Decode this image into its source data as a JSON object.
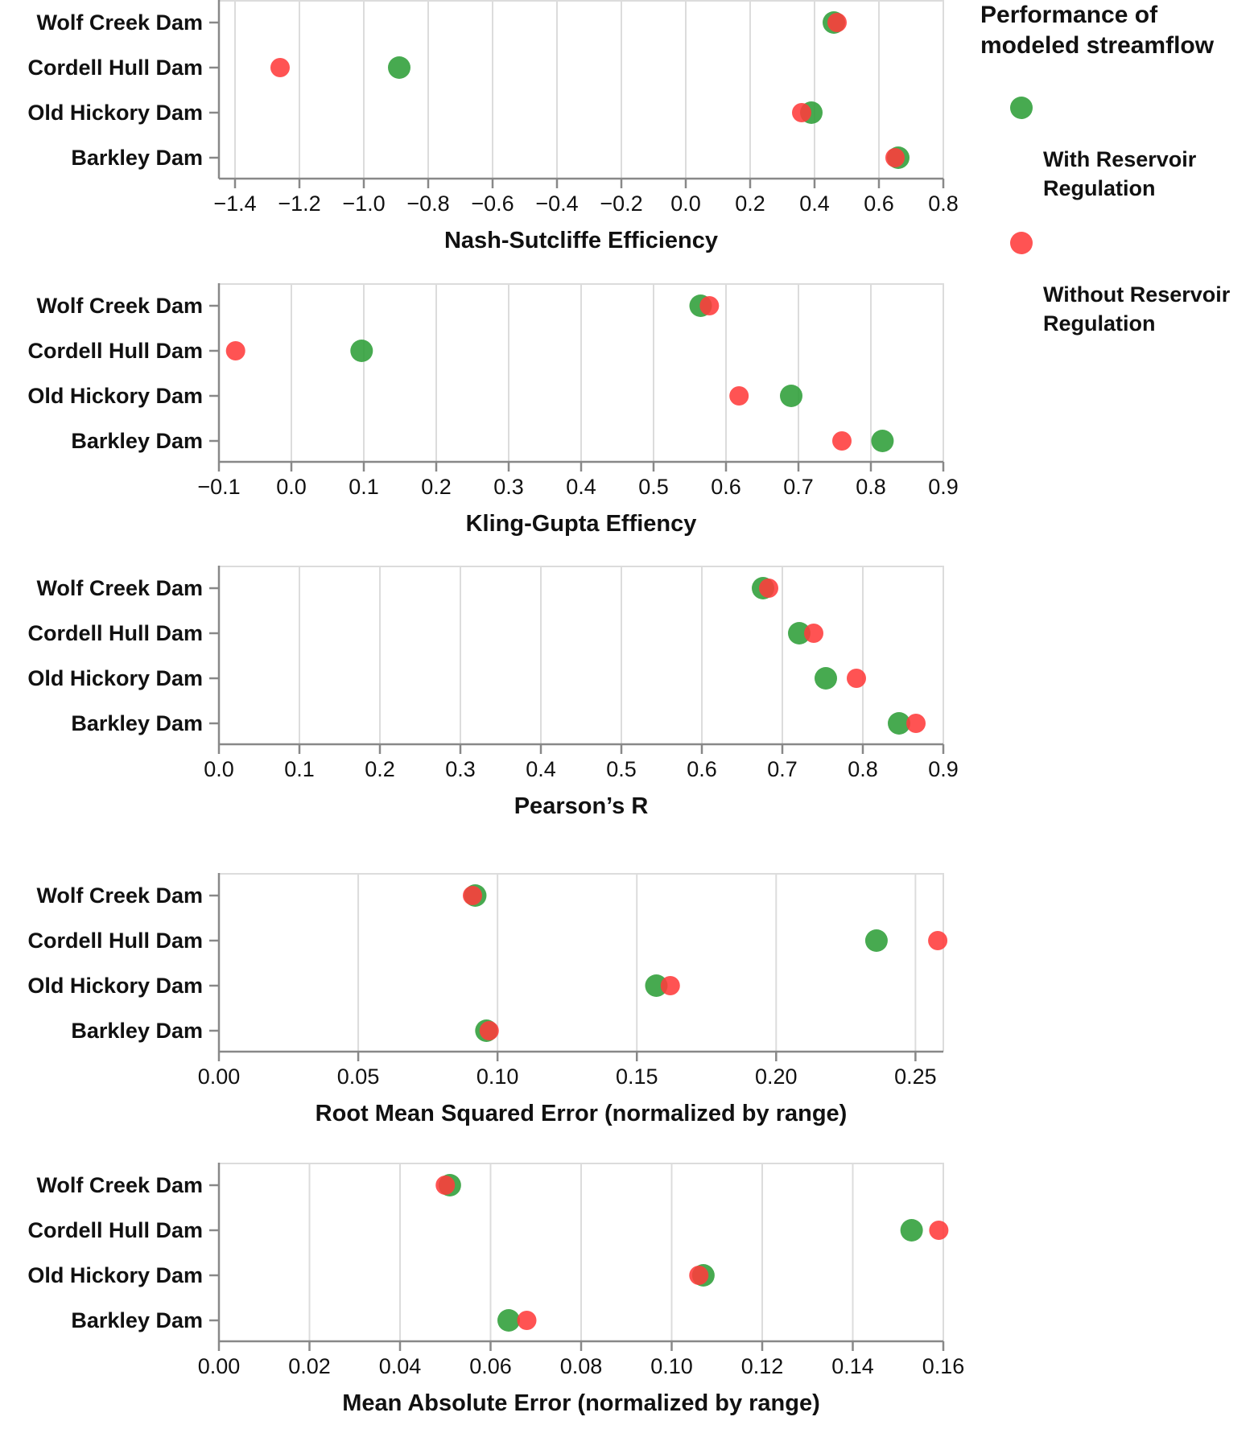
{
  "chart_data": [
    {
      "type": "scatter",
      "categories": [
        "Wolf Creek Dam",
        "Cordell Hull Dam",
        "Old Hickory Dam",
        "Barkley Dam"
      ],
      "xlabel": "Nash-Sutcliffe Efficiency",
      "xlim": [
        -1.45,
        0.8
      ],
      "ticks": [
        -1.4,
        -1.2,
        -1.0,
        -0.8,
        -0.6,
        -0.4,
        -0.2,
        0.0,
        0.2,
        0.4,
        0.6,
        0.8
      ],
      "tick_labels": [
        "−1.4",
        "−1.2",
        "−1.0",
        "−0.8",
        "−0.6",
        "−0.4",
        "−0.2",
        "0.0",
        "0.2",
        "0.4",
        "0.6",
        "0.8"
      ],
      "series": [
        {
          "name": "With Reservoir Regulation",
          "values": [
            0.46,
            -0.89,
            0.39,
            0.66
          ]
        },
        {
          "name": "Without Reservoir Regulation",
          "values": [
            0.47,
            -1.26,
            0.36,
            0.65
          ]
        }
      ]
    },
    {
      "type": "scatter",
      "categories": [
        "Wolf Creek Dam",
        "Cordell Hull Dam",
        "Old Hickory Dam",
        "Barkley Dam"
      ],
      "xlabel": "Kling-Gupta Effiency",
      "xlim": [
        -0.1,
        0.9
      ],
      "ticks": [
        -0.1,
        0.0,
        0.1,
        0.2,
        0.3,
        0.4,
        0.5,
        0.6,
        0.7,
        0.8,
        0.9
      ],
      "tick_labels": [
        "−0.1",
        "0.0",
        "0.1",
        "0.2",
        "0.3",
        "0.4",
        "0.5",
        "0.6",
        "0.7",
        "0.8",
        "0.9"
      ],
      "series": [
        {
          "name": "With Reservoir Regulation",
          "values": [
            0.565,
            0.097,
            0.69,
            0.816
          ]
        },
        {
          "name": "Without Reservoir Regulation",
          "values": [
            0.577,
            -0.077,
            0.618,
            0.76
          ]
        }
      ]
    },
    {
      "type": "scatter",
      "categories": [
        "Wolf Creek Dam",
        "Cordell Hull Dam",
        "Old Hickory Dam",
        "Barkley Dam"
      ],
      "xlabel": "Pearson’s R",
      "xlim": [
        0.0,
        0.9
      ],
      "ticks": [
        0.0,
        0.1,
        0.2,
        0.3,
        0.4,
        0.5,
        0.6,
        0.7,
        0.8,
        0.9
      ],
      "tick_labels": [
        "0.0",
        "0.1",
        "0.2",
        "0.3",
        "0.4",
        "0.5",
        "0.6",
        "0.7",
        "0.8",
        "0.9"
      ],
      "series": [
        {
          "name": "With Reservoir Regulation",
          "values": [
            0.676,
            0.721,
            0.754,
            0.845
          ]
        },
        {
          "name": "Without Reservoir Regulation",
          "values": [
            0.683,
            0.739,
            0.792,
            0.866
          ]
        }
      ]
    },
    {
      "type": "scatter",
      "categories": [
        "Wolf Creek Dam",
        "Cordell Hull Dam",
        "Old Hickory Dam",
        "Barkley Dam"
      ],
      "xlabel": "Root Mean Squared Error (normalized by range)",
      "xlim": [
        0.0,
        0.26
      ],
      "ticks": [
        0.0,
        0.05,
        0.1,
        0.15,
        0.2,
        0.25
      ],
      "tick_labels": [
        "0.00",
        "0.05",
        "0.10",
        "0.15",
        "0.20",
        "0.25"
      ],
      "series": [
        {
          "name": "With Reservoir Regulation",
          "values": [
            0.092,
            0.236,
            0.157,
            0.096
          ]
        },
        {
          "name": "Without Reservoir Regulation",
          "values": [
            0.091,
            0.258,
            0.162,
            0.097
          ]
        }
      ]
    },
    {
      "type": "scatter",
      "categories": [
        "Wolf Creek Dam",
        "Cordell Hull Dam",
        "Old Hickory Dam",
        "Barkley Dam"
      ],
      "xlabel": "Mean Absolute Error (normalized by range)",
      "xlim": [
        0.0,
        0.16
      ],
      "ticks": [
        0.0,
        0.02,
        0.04,
        0.06,
        0.08,
        0.1,
        0.12,
        0.14,
        0.16
      ],
      "tick_labels": [
        "0.00",
        "0.02",
        "0.04",
        "0.06",
        "0.08",
        "0.10",
        "0.12",
        "0.14",
        "0.16"
      ],
      "series": [
        {
          "name": "With Reservoir Regulation",
          "values": [
            0.051,
            0.153,
            0.107,
            0.064
          ]
        },
        {
          "name": "Without Reservoir Regulation",
          "values": [
            0.05,
            0.159,
            0.106,
            0.068
          ]
        }
      ]
    }
  ],
  "legend": {
    "title": "Performance of modeled streamflow",
    "items": [
      {
        "label": "With Reservoir Regulation",
        "color": "#2e9e38"
      },
      {
        "label": "Without Reservoir Regulation",
        "color": "#ff3b3b"
      }
    ]
  }
}
